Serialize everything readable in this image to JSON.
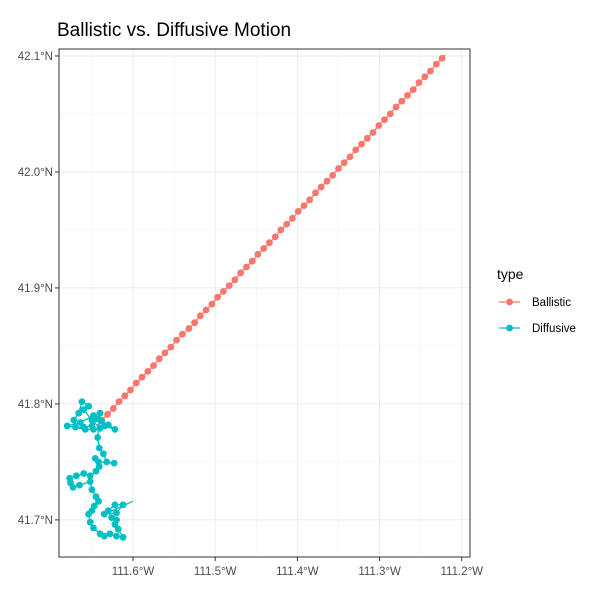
{
  "chart_data": {
    "type": "line",
    "title": "Ballistic vs. Diffusive Motion",
    "xlabel": "",
    "ylabel": "",
    "xlim": [
      -111.69,
      -111.19
    ],
    "ylim": [
      41.668,
      42.106
    ],
    "x_ticks": [
      {
        "value": -111.6,
        "label": "111.6°W"
      },
      {
        "value": -111.5,
        "label": "111.5°W"
      },
      {
        "value": -111.4,
        "label": "111.4°W"
      },
      {
        "value": -111.3,
        "label": "111.3°W"
      },
      {
        "value": -111.2,
        "label": "111.2°W"
      }
    ],
    "y_ticks": [
      {
        "value": 41.7,
        "label": "41.7°N"
      },
      {
        "value": 41.8,
        "label": "41.8°N"
      },
      {
        "value": 41.9,
        "label": "41.9°N"
      },
      {
        "value": 42.0,
        "label": "42.0°N"
      },
      {
        "value": 42.1,
        "label": "42.1°N"
      }
    ],
    "grid": true,
    "legend_position": "right",
    "legend_title": "type",
    "series": [
      {
        "name": "Ballistic",
        "color": "#F8766D",
        "line_start": [
          -111.644,
          41.781
        ],
        "line_end": [
          -111.22,
          42.101
        ],
        "points": [
          [
            -111.638,
            41.786
          ],
          [
            -111.631,
            41.791
          ],
          [
            -111.624,
            41.796
          ],
          [
            -111.617,
            41.802
          ],
          [
            -111.61,
            41.807
          ],
          [
            -111.603,
            41.812
          ],
          [
            -111.596,
            41.818
          ],
          [
            -111.589,
            41.823
          ],
          [
            -111.582,
            41.828
          ],
          [
            -111.575,
            41.833
          ],
          [
            -111.568,
            41.839
          ],
          [
            -111.561,
            41.844
          ],
          [
            -111.554,
            41.849
          ],
          [
            -111.547,
            41.855
          ],
          [
            -111.54,
            41.86
          ],
          [
            -111.532,
            41.865
          ],
          [
            -111.525,
            41.87
          ],
          [
            -111.518,
            41.876
          ],
          [
            -111.511,
            41.881
          ],
          [
            -111.504,
            41.886
          ],
          [
            -111.497,
            41.892
          ],
          [
            -111.49,
            41.897
          ],
          [
            -111.483,
            41.902
          ],
          [
            -111.476,
            41.907
          ],
          [
            -111.469,
            41.913
          ],
          [
            -111.462,
            41.918
          ],
          [
            -111.455,
            41.923
          ],
          [
            -111.448,
            41.929
          ],
          [
            -111.441,
            41.934
          ],
          [
            -111.434,
            41.939
          ],
          [
            -111.427,
            41.944
          ],
          [
            -111.42,
            41.95
          ],
          [
            -111.413,
            41.955
          ],
          [
            -111.406,
            41.96
          ],
          [
            -111.399,
            41.966
          ],
          [
            -111.392,
            41.971
          ],
          [
            -111.385,
            41.976
          ],
          [
            -111.378,
            41.982
          ],
          [
            -111.371,
            41.987
          ],
          [
            -111.364,
            41.992
          ],
          [
            -111.357,
            41.997
          ],
          [
            -111.35,
            42.003
          ],
          [
            -111.343,
            42.008
          ],
          [
            -111.336,
            42.013
          ],
          [
            -111.329,
            42.019
          ],
          [
            -111.322,
            42.024
          ],
          [
            -111.315,
            42.029
          ],
          [
            -111.308,
            42.034
          ],
          [
            -111.301,
            42.04
          ],
          [
            -111.294,
            42.045
          ],
          [
            -111.287,
            42.05
          ],
          [
            -111.28,
            42.056
          ],
          [
            -111.273,
            42.061
          ],
          [
            -111.266,
            42.066
          ],
          [
            -111.259,
            42.071
          ],
          [
            -111.252,
            42.077
          ],
          [
            -111.245,
            42.082
          ],
          [
            -111.238,
            42.087
          ],
          [
            -111.231,
            42.093
          ],
          [
            -111.224,
            42.098
          ]
        ]
      },
      {
        "name": "Diffusive",
        "color": "#00BFC4",
        "line_start": [
          -111.644,
          41.781
        ],
        "line_end": [
          -111.6,
          41.716
        ],
        "points": [
          [
            -111.64,
            41.779
          ],
          [
            -111.65,
            41.786
          ],
          [
            -111.66,
            41.795
          ],
          [
            -111.654,
            41.798
          ],
          [
            -111.662,
            41.802
          ],
          [
            -111.666,
            41.792
          ],
          [
            -111.672,
            41.786
          ],
          [
            -111.67,
            41.78
          ],
          [
            -111.66,
            41.78
          ],
          [
            -111.65,
            41.781
          ],
          [
            -111.643,
            41.787
          ],
          [
            -111.638,
            41.785
          ],
          [
            -111.63,
            41.782
          ],
          [
            -111.622,
            41.778
          ],
          [
            -111.634,
            41.781
          ],
          [
            -111.648,
            41.778
          ],
          [
            -111.658,
            41.778
          ],
          [
            -111.68,
            41.781
          ],
          [
            -111.664,
            41.784
          ],
          [
            -111.648,
            41.79
          ],
          [
            -111.64,
            41.792
          ],
          [
            -111.643,
            41.771
          ],
          [
            -111.641,
            41.762
          ],
          [
            -111.636,
            41.757
          ],
          [
            -111.632,
            41.75
          ],
          [
            -111.623,
            41.749
          ],
          [
            -111.642,
            41.75
          ],
          [
            -111.646,
            41.753
          ],
          [
            -111.641,
            41.746
          ],
          [
            -111.645,
            41.742
          ],
          [
            -111.652,
            41.738
          ],
          [
            -111.66,
            41.74
          ],
          [
            -111.669,
            41.738
          ],
          [
            -111.677,
            41.736
          ],
          [
            -111.676,
            41.732
          ],
          [
            -111.673,
            41.728
          ],
          [
            -111.665,
            41.73
          ],
          [
            -111.652,
            41.733
          ],
          [
            -111.65,
            41.726
          ],
          [
            -111.645,
            41.72
          ],
          [
            -111.642,
            41.716
          ],
          [
            -111.647,
            41.712
          ],
          [
            -111.65,
            41.708
          ],
          [
            -111.654,
            41.705
          ],
          [
            -111.652,
            41.698
          ],
          [
            -111.648,
            41.693
          ],
          [
            -111.64,
            41.688
          ],
          [
            -111.635,
            41.686
          ],
          [
            -111.628,
            41.688
          ],
          [
            -111.62,
            41.686
          ],
          [
            -111.612,
            41.685
          ],
          [
            -111.618,
            41.692
          ],
          [
            -111.622,
            41.696
          ],
          [
            -111.62,
            41.7
          ],
          [
            -111.626,
            41.702
          ],
          [
            -111.63,
            41.708
          ],
          [
            -111.622,
            41.713
          ],
          [
            -111.612,
            41.713
          ],
          [
            -111.62,
            41.706
          ],
          [
            -111.635,
            41.705
          ]
        ]
      }
    ]
  }
}
